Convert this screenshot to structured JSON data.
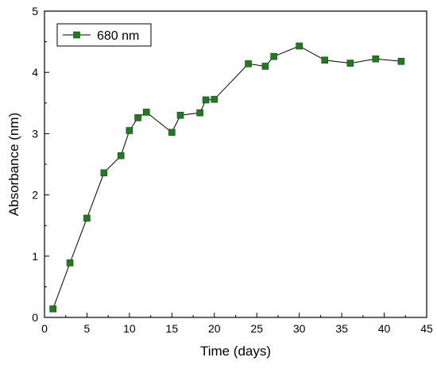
{
  "colors": {
    "series": "#1e7b1e",
    "series_stroke": "#0f4d0f",
    "line": "#000000",
    "background": "#ffffff"
  },
  "chart_data": {
    "type": "line",
    "title": "",
    "xlabel": "Time (days)",
    "ylabel": "Absorbance (nm)",
    "xlim": [
      0,
      45
    ],
    "ylim": [
      0,
      5
    ],
    "xticks": [
      0,
      5,
      10,
      15,
      20,
      25,
      30,
      35,
      40,
      45
    ],
    "yticks": [
      0,
      1,
      2,
      3,
      4,
      5
    ],
    "grid": false,
    "legend_position": "top-left",
    "marker": "square",
    "series": [
      {
        "name": "680 nm",
        "x": [
          1,
          3,
          5,
          7,
          9,
          10,
          11,
          12,
          15,
          16,
          18.3,
          19,
          20,
          24,
          26,
          27,
          30,
          33,
          36,
          39,
          42
        ],
        "y": [
          0.14,
          0.89,
          1.62,
          2.36,
          2.64,
          3.05,
          3.26,
          3.35,
          3.02,
          3.3,
          3.34,
          3.55,
          3.56,
          4.14,
          4.1,
          4.26,
          4.43,
          4.2,
          4.15,
          4.22,
          4.18
        ]
      }
    ]
  }
}
